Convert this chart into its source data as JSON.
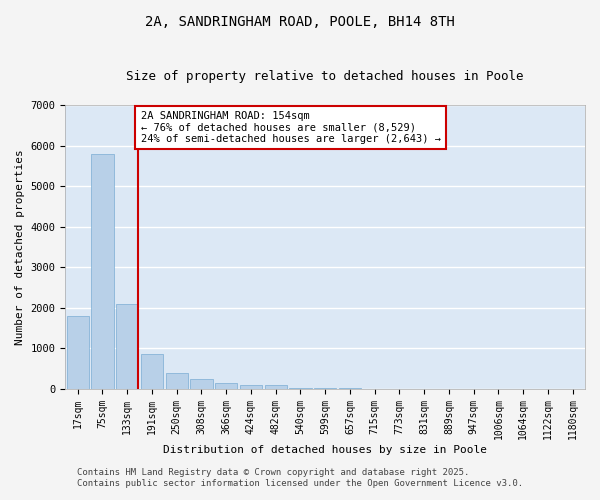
{
  "title": "2A, SANDRINGHAM ROAD, POOLE, BH14 8TH",
  "subtitle": "Size of property relative to detached houses in Poole",
  "xlabel": "Distribution of detached houses by size in Poole",
  "ylabel": "Number of detached properties",
  "bin_labels": [
    "17sqm",
    "75sqm",
    "133sqm",
    "191sqm",
    "250sqm",
    "308sqm",
    "366sqm",
    "424sqm",
    "482sqm",
    "540sqm",
    "599sqm",
    "657sqm",
    "715sqm",
    "773sqm",
    "831sqm",
    "889sqm",
    "947sqm",
    "1006sqm",
    "1064sqm",
    "1122sqm",
    "1180sqm"
  ],
  "bar_values": [
    1800,
    5800,
    2100,
    850,
    380,
    230,
    130,
    80,
    80,
    20,
    10,
    5,
    2,
    1,
    0,
    0,
    0,
    0,
    0,
    0,
    0
  ],
  "bar_color": "#b8d0e8",
  "bar_edge_color": "#7aadd4",
  "fig_background_color": "#f4f4f4",
  "plot_background_color": "#dce8f5",
  "grid_color": "#ffffff",
  "vline_x": 2.44,
  "vline_color": "#cc0000",
  "annotation_text": "2A SANDRINGHAM ROAD: 154sqm\n← 76% of detached houses are smaller (8,529)\n24% of semi-detached houses are larger (2,643) →",
  "annotation_box_facecolor": "#ffffff",
  "annotation_box_edgecolor": "#cc0000",
  "ylim": [
    0,
    7000
  ],
  "yticks": [
    0,
    1000,
    2000,
    3000,
    4000,
    5000,
    6000,
    7000
  ],
  "footer_line1": "Contains HM Land Registry data © Crown copyright and database right 2025.",
  "footer_line2": "Contains public sector information licensed under the Open Government Licence v3.0.",
  "title_fontsize": 10,
  "subtitle_fontsize": 9,
  "axis_label_fontsize": 8,
  "tick_fontsize": 7,
  "annotation_fontsize": 7.5,
  "footer_fontsize": 6.5
}
